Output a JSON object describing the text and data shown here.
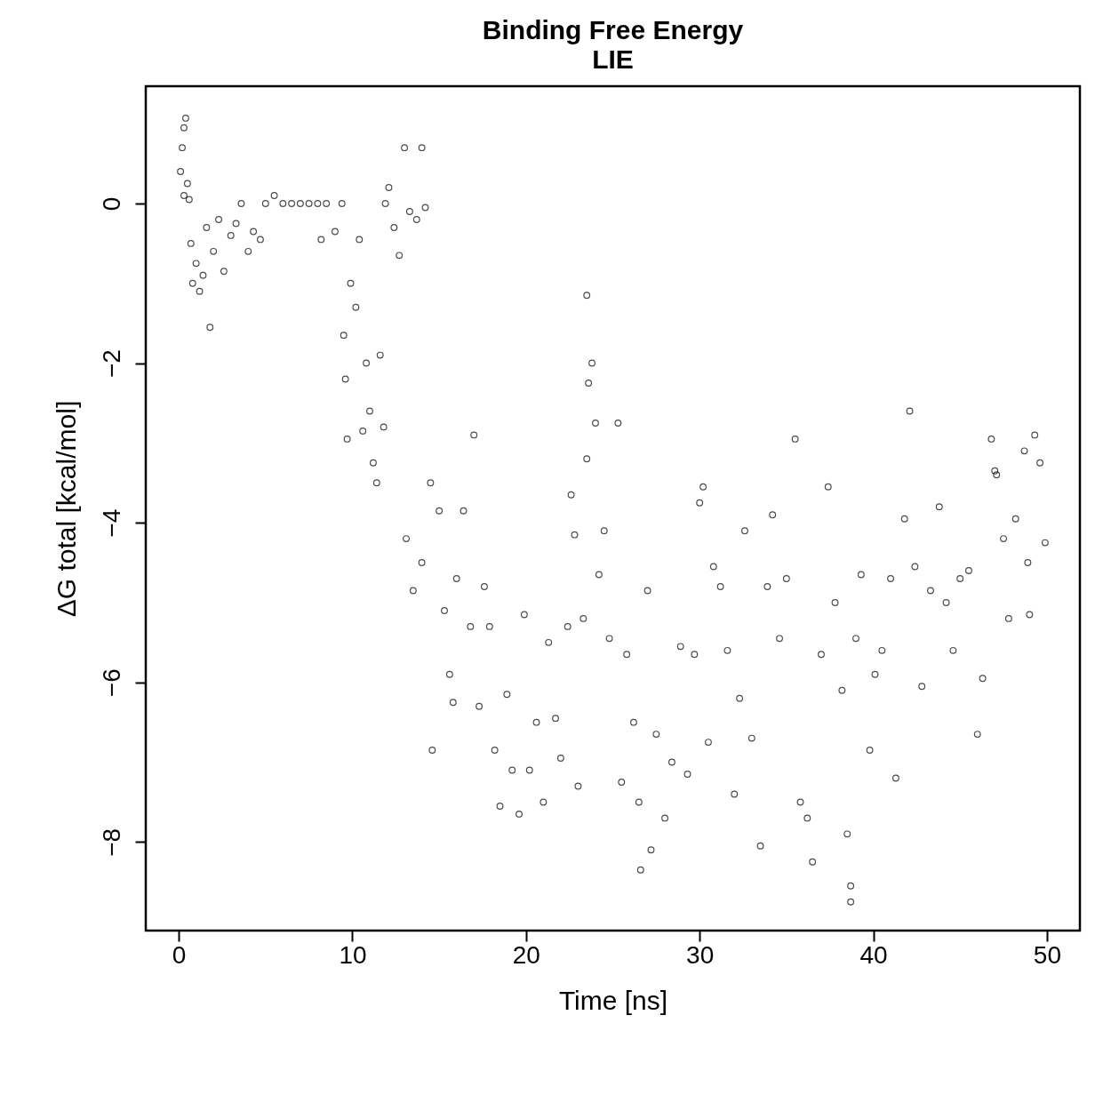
{
  "chart_data": {
    "type": "scatter",
    "title": "Binding Free Energy",
    "subtitle": "LIE",
    "xlabel": "Time [ns]",
    "ylabel": "ΔG total [kcal/mol]",
    "xlim": [
      -1.9,
      51.9
    ],
    "ylim": [
      -9.11,
      1.47
    ],
    "xticks": [
      0,
      10,
      20,
      30,
      40,
      50
    ],
    "yticks": [
      -8,
      -6,
      -4,
      -2,
      0
    ],
    "grid": false,
    "marker": "circle",
    "series": [
      {
        "color": "#000000",
        "x": [
          0.1,
          0.2,
          0.3,
          0.4,
          0.3,
          0.5,
          0.6,
          0.7,
          0.8,
          1.0,
          1.2,
          1.4,
          1.6,
          1.8,
          2.0,
          2.3,
          2.6,
          3.0,
          3.3,
          3.6,
          4.0,
          4.3,
          4.7,
          5.0,
          5.5,
          6,
          6.5,
          7,
          7.5,
          8,
          8.2,
          8.5,
          9,
          9.4,
          9.5,
          9.6,
          9.7,
          9.9,
          10.2,
          10.4,
          10.6,
          10.8,
          11.0,
          11.2,
          11.4,
          11.6,
          11.8,
          11.9,
          12.1,
          12.4,
          12.7,
          13.0,
          13.3,
          13.7,
          14.0,
          14.2,
          13.1,
          13.5,
          14.0,
          14.5,
          14.6,
          15.0,
          15.3,
          15.6,
          15.8,
          16.0,
          16.4,
          16.8,
          17.0,
          17.3,
          17.6,
          17.9,
          18.2,
          18.5,
          18.9,
          19.2,
          19.6,
          19.9,
          20.2,
          20.6,
          21.0,
          21.3,
          21.7,
          22.0,
          22.4,
          22.6,
          22.8,
          23.0,
          23.3,
          23.5,
          23.6,
          23.8,
          24.0,
          23.5,
          24.2,
          24.5,
          24.8,
          25.3,
          25.5,
          25.8,
          26.2,
          26.5,
          26.6,
          27.0,
          27.2,
          27.5,
          28.0,
          28.4,
          28.9,
          29.3,
          29.7,
          30.0,
          30.2,
          30.5,
          30.8,
          31.2,
          31.6,
          32.0,
          32.3,
          32.6,
          33.0,
          33.5,
          33.9,
          34.2,
          34.6,
          35.0,
          35.5,
          35.8,
          36.2,
          36.5,
          37.0,
          37.4,
          37.8,
          38.2,
          38.5,
          38.7,
          38.7,
          39.0,
          39.3,
          39.8,
          40.1,
          40.5,
          41.0,
          41.3,
          41.8,
          42.1,
          42.4,
          42.8,
          43.3,
          43.8,
          44.2,
          44.6,
          45.0,
          45.5,
          46.0,
          46.3,
          46.8,
          47.1,
          47.5,
          47.8,
          48.2,
          48.7,
          49.0,
          49.3,
          49.6,
          49.9,
          47.0,
          48.9
        ],
        "values": [
          0.4,
          0.7,
          0.95,
          1.07,
          0.1,
          0.25,
          0.05,
          -0.5,
          -1.0,
          -0.75,
          -1.1,
          -0.9,
          -0.3,
          -1.55,
          -0.6,
          -0.2,
          -0.85,
          -0.4,
          -0.25,
          0.0,
          -0.6,
          -0.35,
          -0.45,
          0.0,
          0.1,
          0,
          0,
          0,
          0,
          0,
          -0.45,
          0,
          -0.35,
          0,
          -1.65,
          -2.2,
          -2.95,
          -1.0,
          -1.3,
          -0.45,
          -2.85,
          -2.0,
          -2.6,
          -3.25,
          -3.5,
          -1.9,
          -2.8,
          0.0,
          0.2,
          -0.3,
          -0.65,
          0.7,
          -0.1,
          -0.2,
          0.7,
          -0.05,
          -4.2,
          -4.85,
          -4.5,
          -3.5,
          -6.85,
          -3.85,
          -5.1,
          -5.9,
          -6.25,
          -4.7,
          -3.85,
          -5.3,
          -2.9,
          -6.3,
          -4.8,
          -5.3,
          -6.85,
          -7.55,
          -6.15,
          -7.1,
          -7.65,
          -5.15,
          -7.1,
          -6.5,
          -7.5,
          -5.5,
          -6.45,
          -6.95,
          -5.3,
          -3.65,
          -4.15,
          -7.3,
          -5.2,
          -1.15,
          -2.25,
          -2.0,
          -2.75,
          -3.2,
          -4.65,
          -4.1,
          -5.45,
          -2.75,
          -7.25,
          -5.65,
          -6.5,
          -7.5,
          -8.35,
          -4.85,
          -8.1,
          -6.65,
          -7.7,
          -7.0,
          -5.55,
          -7.15,
          -5.65,
          -3.75,
          -3.55,
          -6.75,
          -4.55,
          -4.8,
          -5.6,
          -7.4,
          -6.2,
          -4.1,
          -6.7,
          -8.05,
          -4.8,
          -3.9,
          -5.45,
          -4.7,
          -2.95,
          -7.5,
          -7.7,
          -8.25,
          -5.65,
          -3.55,
          -5.0,
          -6.1,
          -7.9,
          -8.75,
          -8.55,
          -5.45,
          -4.65,
          -6.85,
          -5.9,
          -5.6,
          -4.7,
          -7.2,
          -3.95,
          -2.6,
          -4.55,
          -6.05,
          -4.85,
          -3.8,
          -5.0,
          -5.6,
          -4.7,
          -4.6,
          -6.65,
          -5.95,
          -2.95,
          -3.4,
          -4.2,
          -5.2,
          -3.95,
          -3.1,
          -5.15,
          -2.9,
          -3.25,
          -4.25,
          -3.35,
          -4.5
        ]
      }
    ]
  }
}
